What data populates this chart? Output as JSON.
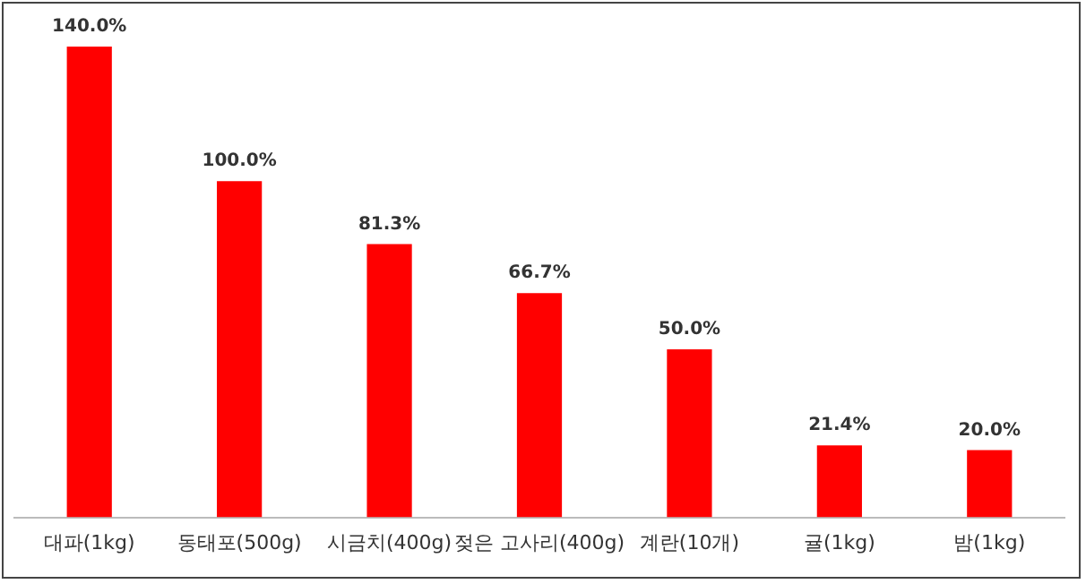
{
  "chart_data": {
    "type": "bar",
    "categories": [
      "대파(1kg)",
      "동태포(500g)",
      "시금치(400g)",
      "젖은 고사리(400g)",
      "계란(10개)",
      "귤(1kg)",
      "밤(1kg)"
    ],
    "values": [
      140.0,
      100.0,
      81.3,
      66.7,
      50.0,
      21.4,
      20.0
    ],
    "color": "#ff0000",
    "value_labels": [
      "140.0%",
      "100.0%",
      "81.3%",
      "66.7%",
      "50.0%",
      "21.4%",
      "20.0%"
    ],
    "grid": false,
    "legend": false
  }
}
